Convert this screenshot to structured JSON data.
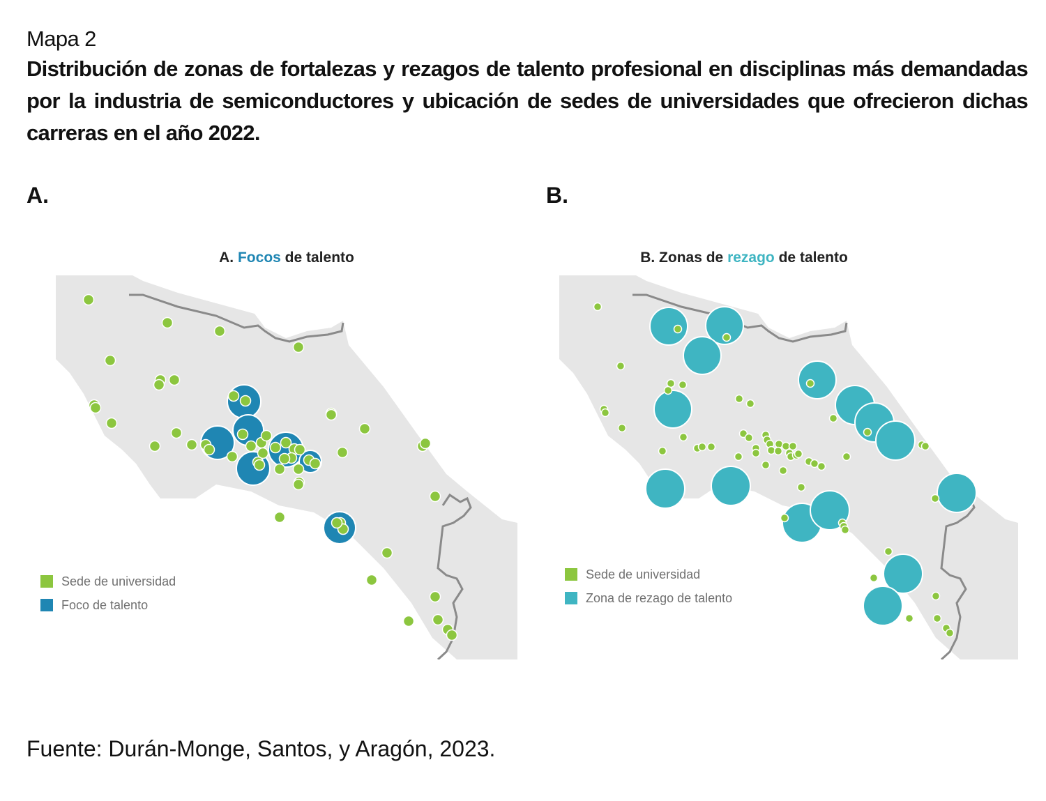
{
  "heading": {
    "map_label": "Mapa 2",
    "caption": "Distribución de zonas de fortalezas y rezagos de talento profesional en disciplinas más demandadas por la industria de semiconductores y ubicación de sedes de universidades que ofrecieron dichas carreras en el año 2022."
  },
  "panels": [
    {
      "letter": "A.",
      "title_prefix": "A.",
      "title_accent": "Focos",
      "title_suffix": "de talento",
      "legend": [
        {
          "label": "Sede de universidad",
          "color": "#8cc63f"
        },
        {
          "label": "Foco de talento",
          "color": "#1f86b3"
        }
      ]
    },
    {
      "letter": "B.",
      "title_prefix": "B. Zonas de",
      "title_accent": "rezago",
      "title_suffix": "de talento",
      "legend": [
        {
          "label": "Sede de universidad",
          "color": "#8cc63f"
        },
        {
          "label": "Zona de rezago de talento",
          "color": "#3fb5c2"
        }
      ]
    }
  ],
  "source": "Fuente: Durán-Monge, Santos, y Aragón, 2023.",
  "colors": {
    "land": "#e6e6e6",
    "border": "#8a8a8a",
    "university": "#8cc63f",
    "focus": "#1f86b3",
    "lag": "#3fb5c2"
  }
}
